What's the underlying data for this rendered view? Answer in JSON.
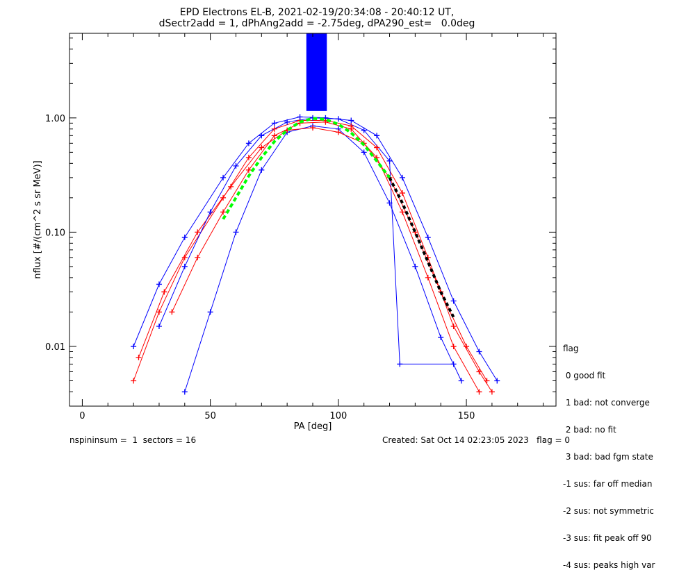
{
  "chart_data": {
    "type": "line",
    "title_line1": "EPD Electrons EL-B, 2021-02-19/20:34:08 - 20:40:12 UT,",
    "title_line2": "dSectr2add = 1, dPhAng2add = -2.75deg, dPA290_est=   0.0deg",
    "xlabel": "PA [deg]",
    "ylabel": "nflux [#/(cm^2 s sr MeV)]",
    "xlim": [
      -5,
      185
    ],
    "ylim": [
      0.003,
      5.5
    ],
    "yscale": "log",
    "xticks": [
      0,
      50,
      100,
      150
    ],
    "yticks": [
      {
        "value": 0.01,
        "label": "0.01"
      },
      {
        "value": 0.1,
        "label": "0.10"
      },
      {
        "value": 1.0,
        "label": "1.00"
      }
    ],
    "colors": {
      "red": "#ff0000",
      "blue": "#0000ff",
      "green": "#00ff00",
      "black": "#000000"
    },
    "series": [
      {
        "color": "red",
        "x": [
          20,
          30,
          40,
          55,
          65,
          75,
          85,
          95,
          105,
          115,
          125,
          135,
          145,
          155,
          160
        ],
        "y": [
          0.005,
          0.02,
          0.06,
          0.2,
          0.45,
          0.8,
          0.95,
          0.95,
          0.85,
          0.55,
          0.22,
          0.06,
          0.015,
          0.006,
          0.004
        ]
      },
      {
        "color": "blue",
        "x": [
          20,
          30,
          40,
          55,
          65,
          75,
          85,
          95,
          105,
          115,
          125,
          135,
          145,
          155,
          162
        ],
        "y": [
          0.01,
          0.035,
          0.09,
          0.3,
          0.6,
          0.9,
          1.02,
          1.0,
          0.95,
          0.7,
          0.3,
          0.09,
          0.025,
          0.009,
          0.005
        ]
      },
      {
        "color": "blue",
        "x": [
          40,
          50,
          60,
          70,
          80,
          90,
          100,
          110,
          120,
          130,
          140,
          148
        ],
        "y": [
          0.004,
          0.02,
          0.1,
          0.35,
          0.75,
          0.85,
          0.8,
          0.5,
          0.18,
          0.05,
          0.012,
          0.005
        ]
      },
      {
        "color": "red",
        "x": [
          22,
          32,
          45,
          58,
          70,
          80,
          90,
          100,
          110,
          120,
          130,
          140,
          150,
          158
        ],
        "y": [
          0.008,
          0.03,
          0.1,
          0.25,
          0.55,
          0.78,
          0.82,
          0.75,
          0.6,
          0.3,
          0.1,
          0.03,
          0.01,
          0.005
        ]
      },
      {
        "color": "blue",
        "x": [
          30,
          40,
          50,
          60,
          70,
          80,
          90,
          100,
          110,
          120,
          124,
          145
        ],
        "y": [
          0.015,
          0.05,
          0.15,
          0.38,
          0.7,
          0.92,
          1.0,
          0.98,
          0.78,
          0.42,
          0.007,
          0.007
        ]
      },
      {
        "color": "red",
        "x": [
          35,
          45,
          55,
          65,
          75,
          85,
          95,
          105,
          115,
          125,
          135,
          145,
          155
        ],
        "y": [
          0.02,
          0.06,
          0.15,
          0.35,
          0.7,
          0.9,
          0.92,
          0.8,
          0.45,
          0.15,
          0.04,
          0.01,
          0.004
        ]
      }
    ],
    "fit_green": {
      "x": [
        55,
        60,
        65,
        70,
        75,
        80,
        85,
        90,
        95,
        100,
        105,
        110,
        115,
        120
      ],
      "y": [
        0.13,
        0.2,
        0.31,
        0.45,
        0.62,
        0.78,
        0.92,
        0.99,
        0.97,
        0.88,
        0.74,
        0.58,
        0.42,
        0.3
      ]
    },
    "fit_black": {
      "x": [
        120,
        125,
        130,
        135,
        140,
        145
      ],
      "y": [
        0.3,
        0.18,
        0.1,
        0.055,
        0.03,
        0.018
      ]
    },
    "saturated_column": {
      "x_start": 87.5,
      "x_end": 95.5,
      "y_bottom": 1.15
    }
  },
  "legend": {
    "title": "flag",
    "entries": [
      " 0 good fit",
      " 1 bad: not converge",
      " 2 bad: no fit",
      " 3 bad: bad fgm state",
      "-1 sus: far off median",
      "-2 sus: not symmetric",
      "-3 sus: fit peak off 90",
      "-4 sus: peaks high var"
    ]
  },
  "footer": {
    "left": "nspininsum =  1  sectors = 16",
    "right": "Created: Sat Oct 14 02:23:05 2023   flag = 0"
  }
}
